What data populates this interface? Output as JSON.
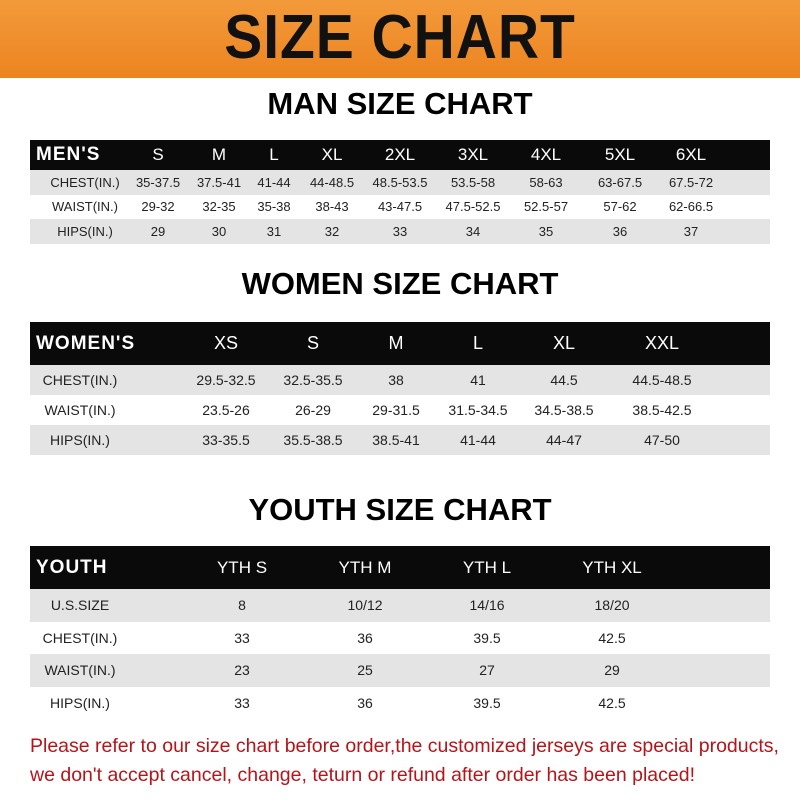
{
  "banner": {
    "title": "SIZE CHART",
    "color": "#ee8a25"
  },
  "men": {
    "title": "MAN SIZE CHART",
    "header": [
      "MEN'S",
      "S",
      "M",
      "L",
      "XL",
      "2XL",
      "3XL",
      "4XL",
      "5XL",
      "6XL"
    ],
    "rows": [
      [
        "CHEST(IN.)",
        "35-37.5",
        "37.5-41",
        "41-44",
        "44-48.5",
        "48.5-53.5",
        "53.5-58",
        "58-63",
        "63-67.5",
        "67.5-72"
      ],
      [
        "WAIST(IN.)",
        "29-32",
        "32-35",
        "35-38",
        "38-43",
        "43-47.5",
        "47.5-52.5",
        "52.5-57",
        "57-62",
        "62-66.5"
      ],
      [
        "HIPS(IN.)",
        "29",
        "30",
        "31",
        "32",
        "33",
        "34",
        "35",
        "36",
        "37"
      ]
    ]
  },
  "women": {
    "title": "WOMEN SIZE CHART",
    "header": [
      "WOMEN'S",
      "XS",
      "S",
      "M",
      "L",
      "XL",
      "XXL"
    ],
    "rows": [
      [
        "CHEST(IN.)",
        "29.5-32.5",
        "32.5-35.5",
        "38",
        "41",
        "44.5",
        "44.5-48.5"
      ],
      [
        "WAIST(IN.)",
        "23.5-26",
        "26-29",
        "29-31.5",
        "31.5-34.5",
        "34.5-38.5",
        "38.5-42.5"
      ],
      [
        "HIPS(IN.)",
        "33-35.5",
        "35.5-38.5",
        "38.5-41",
        "41-44",
        "44-47",
        "47-50"
      ]
    ]
  },
  "youth": {
    "title": "YOUTH SIZE CHART",
    "header": [
      "YOUTH",
      "YTH S",
      "YTH M",
      "YTH L",
      "YTH XL"
    ],
    "rows": [
      [
        "U.S.SIZE",
        "8",
        "10/12",
        "14/16",
        "18/20"
      ],
      [
        "CHEST(IN.)",
        "33",
        "36",
        "39.5",
        "42.5"
      ],
      [
        "WAIST(IN.)",
        "23",
        "25",
        "27",
        "29"
      ],
      [
        "HIPS(IN.)",
        "33",
        "36",
        "39.5",
        "42.5"
      ]
    ]
  },
  "notice": {
    "line1": "Please refer to our size chart before order,the customized jerseys are special products,",
    "line2": "we don't accept cancel, change, teturn or refund after order has been placed!",
    "color": "#b3151b"
  }
}
